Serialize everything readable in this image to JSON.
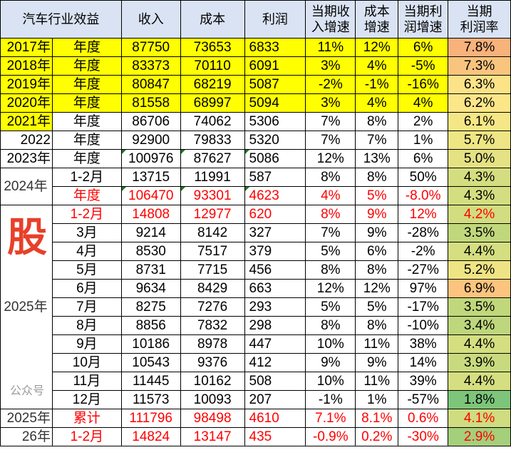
{
  "header": [
    "汽车行业效益",
    "收入",
    "成本",
    "利润",
    "当期收\n入增速",
    "成本\n增速",
    "当期利\n润增速",
    "当期\n利润率"
  ],
  "rows": [
    {
      "year": "2017年",
      "period": "年度",
      "revenue": "87750",
      "cost": "73653",
      "profit": "6833",
      "rev_growth": "11%",
      "cost_growth": "12%",
      "profit_growth": "6%",
      "margin": "7.8%",
      "margin_color": "#F8B27C",
      "highlight": "row"
    },
    {
      "year": "2018年",
      "period": "年度",
      "revenue": "83373",
      "cost": "70110",
      "profit": "6091",
      "rev_growth": "3%",
      "cost_growth": "4%",
      "profit_growth": "-5%",
      "margin": "7.3%",
      "margin_color": "#F9C47E",
      "highlight": "row"
    },
    {
      "year": "2019年",
      "period": "年度",
      "revenue": "80847",
      "cost": "68219",
      "profit": "5087",
      "rev_growth": "-2%",
      "cost_growth": "-1%",
      "profit_growth": "-16%",
      "margin": "6.3%",
      "margin_color": "#FCE388",
      "highlight": "row"
    },
    {
      "year": "2020年",
      "period": "年度",
      "revenue": "81558",
      "cost": "68997",
      "profit": "5094",
      "rev_growth": "3%",
      "cost_growth": "4%",
      "profit_growth": "4%",
      "margin": "6.2%",
      "margin_color": "#FBE688",
      "highlight": "row"
    },
    {
      "year": "2021年",
      "period": "年度",
      "revenue": "86706",
      "cost": "74062",
      "profit": "5306",
      "rev_growth": "7%",
      "cost_growth": "8%",
      "profit_growth": "2%",
      "margin": "6.1%",
      "margin_color": "#F6E786",
      "highlight": "year"
    },
    {
      "year": "2022",
      "period": "年度",
      "revenue": "92900",
      "cost": "79833",
      "profit": "5320",
      "rev_growth": "7%",
      "cost_growth": "7%",
      "profit_growth": "1%",
      "margin": "5.7%",
      "margin_color": "#EEE584"
    },
    {
      "year": "2023年",
      "period": "年度",
      "revenue": "100976",
      "cost": "87627",
      "profit": "5086",
      "rev_growth": "12%",
      "cost_growth": "13%",
      "profit_growth": "6%",
      "margin": "5.0%",
      "margin_color": "#E4E283",
      "flag": true
    },
    {
      "year": "2024年",
      "year_span": 2,
      "year_red": true,
      "period": "1-2月",
      "revenue": "13715",
      "cost": "11991",
      "profit": "587",
      "rev_growth": "8%",
      "cost_growth": "8%",
      "profit_growth": "50%",
      "margin": "4.3%",
      "margin_color": "#D4DE80"
    },
    {
      "period": "年度",
      "revenue": "106470",
      "cost": "93301",
      "profit": "4623",
      "rev_growth": "4%",
      "cost_growth": "5%",
      "profit_growth": "-8.0%",
      "margin": "4.3%",
      "margin_color": "#D4DE80",
      "red": true,
      "flag": true
    },
    {
      "year": "2025年",
      "year_span": 11,
      "period": "1-2月",
      "revenue": "14808",
      "cost": "12977",
      "profit": "620",
      "rev_growth": "8%",
      "cost_growth": "9%",
      "profit_growth": "12%",
      "margin": "4.2%",
      "margin_color": "#D2DD80",
      "red": true,
      "margin_red": true
    },
    {
      "period": "3月",
      "revenue": "9214",
      "cost": "8142",
      "profit": "327",
      "rev_growth": "7%",
      "cost_growth": "9%",
      "profit_growth": "-28%",
      "margin": "3.5%",
      "margin_color": "#C1D77C"
    },
    {
      "period": "4月",
      "revenue": "8530",
      "cost": "7517",
      "profit": "379",
      "rev_growth": "5%",
      "cost_growth": "6%",
      "profit_growth": "-2%",
      "margin": "4.4%",
      "margin_color": "#D5DE80"
    },
    {
      "period": "5月",
      "revenue": "8731",
      "cost": "7715",
      "profit": "456",
      "rev_growth": "8%",
      "cost_growth": "8%",
      "profit_growth": "-27%",
      "margin": "5.2%",
      "margin_color": "#EFE484"
    },
    {
      "period": "6月",
      "revenue": "9634",
      "cost": "8429",
      "profit": "663",
      "rev_growth": "12%",
      "cost_growth": "12%",
      "profit_growth": "97%",
      "margin": "6.9%",
      "margin_color": "#FCC47E"
    },
    {
      "period": "7月",
      "revenue": "8275",
      "cost": "7276",
      "profit": "293",
      "rev_growth": "5%",
      "cost_growth": "5%",
      "profit_growth": "-17%",
      "margin": "3.5%",
      "margin_color": "#C1D77C"
    },
    {
      "period": "8月",
      "revenue": "8856",
      "cost": "7832",
      "profit": "298",
      "rev_growth": "8%",
      "cost_growth": "8%",
      "profit_growth": "-10%",
      "margin": "3.4%",
      "margin_color": "#BED67C"
    },
    {
      "period": "9月",
      "revenue": "10186",
      "cost": "8978",
      "profit": "447",
      "rev_growth": "10%",
      "cost_growth": "11%",
      "profit_growth": "38%",
      "margin": "4.4%",
      "margin_color": "#D5DE80"
    },
    {
      "period": "10月",
      "revenue": "10543",
      "cost": "9376",
      "profit": "412",
      "rev_growth": "9%",
      "cost_growth": "9%",
      "profit_growth": "14%",
      "margin": "3.9%",
      "margin_color": "#C9DA7E"
    },
    {
      "period": "11月",
      "revenue": "11445",
      "cost": "10162",
      "profit": "508",
      "rev_growth": "10%",
      "cost_growth": "11%",
      "profit_growth": "39%",
      "margin": "4.4%",
      "margin_color": "#D5DE80"
    },
    {
      "period": "12月",
      "revenue": "11573",
      "cost": "10093",
      "profit": "207",
      "rev_growth": "-1%",
      "cost_growth": "1%",
      "profit_growth": "-57%",
      "margin": "1.8%",
      "margin_color": "#7DC57A"
    },
    {
      "year": "2025年",
      "year_red": true,
      "period": "累计",
      "revenue": "111796",
      "cost": "98498",
      "profit": "4610",
      "rev_growth": "7.1%",
      "cost_growth": "8.1%",
      "profit_growth": "0.6%",
      "margin": "4.1%",
      "margin_color": "#CFDC7F",
      "red": true,
      "margin_red": true
    },
    {
      "year": "26年",
      "year_red": true,
      "period": "1-2月",
      "revenue": "14824",
      "cost": "13147",
      "profit": "435",
      "rev_growth": "-0.9%",
      "cost_growth": "0.2%",
      "profit_growth": "-30%",
      "margin": "2.9%",
      "margin_color": "#A4CF7B",
      "red": true,
      "margin_red": true
    }
  ],
  "watermark": {
    "char": "股",
    "text": "公众号"
  }
}
